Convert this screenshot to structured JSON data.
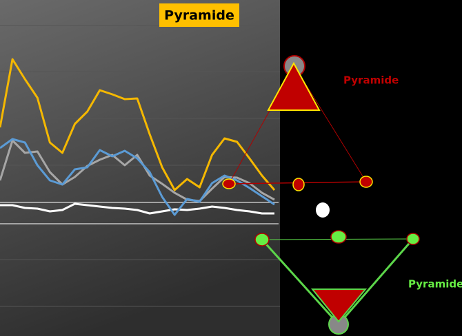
{
  "chart_data": {
    "type": "line",
    "title": "Pyramide",
    "annotations": [
      "Pyramide",
      "Pyramide"
    ],
    "x": [
      null,
      null,
      null,
      null,
      null,
      null,
      null,
      null,
      null,
      null,
      null,
      null,
      null,
      null,
      null,
      null,
      null,
      null,
      null,
      null,
      null,
      null,
      null
    ],
    "ylim": [
      0,
      488
    ],
    "series": [
      {
        "color": "#f5b800",
        "values": [
          303,
          402,
          373,
          346,
          281,
          266,
          308,
          326,
          357,
          351,
          344,
          345,
          293,
          245,
          212,
          228,
          216,
          263,
          287,
          282,
          258,
          233,
          212
        ]
      },
      {
        "color": "#5b9bd5",
        "values": [
          273,
          286,
          281,
          248,
          226,
          220,
          242,
          245,
          270,
          261,
          269,
          258,
          238,
          202,
          176,
          199,
          195,
          222,
          233,
          226,
          215,
          203,
          191
        ]
      },
      {
        "color": "#a6a6a6",
        "values": [
          226,
          284,
          266,
          268,
          238,
          220,
          231,
          247,
          256,
          263,
          248,
          263,
          233,
          221,
          208,
          198,
          196,
          214,
          231,
          230,
          222,
          208,
          198
        ]
      },
      {
        "color": "#ffffff",
        "values": [
          190,
          190,
          186,
          185,
          181,
          183,
          192,
          190,
          188,
          186,
          185,
          183,
          178,
          181,
          184,
          183,
          185,
          188,
          186,
          183,
          181,
          178,
          178
        ]
      }
    ]
  }
}
